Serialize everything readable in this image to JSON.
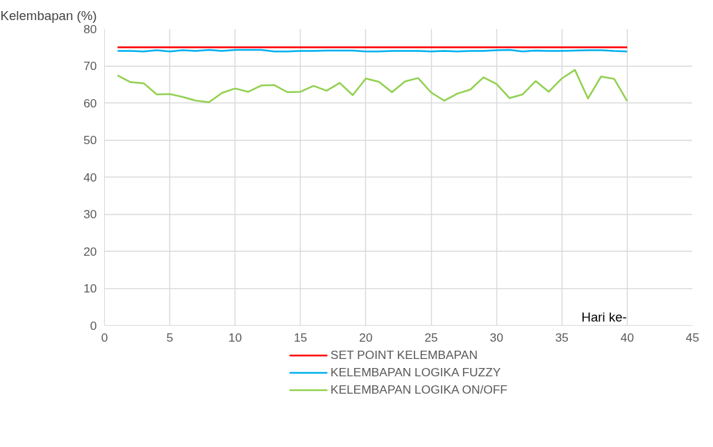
{
  "chart_data": {
    "type": "line",
    "ylabel": "Kelembapan (%)",
    "xlabel": "Hari ke-",
    "x": [
      1,
      2,
      3,
      4,
      5,
      6,
      7,
      8,
      9,
      10,
      11,
      12,
      13,
      14,
      15,
      16,
      17,
      18,
      19,
      20,
      21,
      22,
      23,
      24,
      25,
      26,
      27,
      28,
      29,
      30,
      31,
      32,
      33,
      34,
      35,
      36,
      37,
      38,
      39,
      40
    ],
    "series": [
      {
        "name": "SET POINT KELEMBAPAN",
        "color": "#ff0000",
        "values": [
          75,
          75,
          75,
          75,
          75,
          75,
          75,
          75,
          75,
          75,
          75,
          75,
          75,
          75,
          75,
          75,
          75,
          75,
          75,
          75,
          75,
          75,
          75,
          75,
          75,
          75,
          75,
          75,
          75,
          75,
          75,
          75,
          75,
          75,
          75,
          75,
          75,
          75,
          75,
          75
        ]
      },
      {
        "name": "KELEMBAPAN LOGIKA FUZZY",
        "color": "#00b0f0",
        "values": [
          74,
          74,
          73.9,
          74.2,
          73.9,
          74.2,
          74,
          74.3,
          74,
          74.3,
          74.3,
          74.3,
          73.9,
          73.9,
          74,
          74,
          74.1,
          74.1,
          74.1,
          73.9,
          73.9,
          74,
          74,
          74,
          73.9,
          74,
          73.9,
          74,
          74,
          74.2,
          74.3,
          73.9,
          74.1,
          74,
          74,
          74.1,
          74.2,
          74.2,
          74,
          73.9
        ]
      },
      {
        "name": "KELEMBAPAN LOGIKA ON/OFF",
        "color": "#92d050",
        "values": [
          67.4,
          65.6,
          65.3,
          62.3,
          62.4,
          61.6,
          60.6,
          60.2,
          62.7,
          63.9,
          63.0,
          64.7,
          64.8,
          62.9,
          63.0,
          64.6,
          63.3,
          65.4,
          62.1,
          66.6,
          65.7,
          62.9,
          65.8,
          66.7,
          62.8,
          60.6,
          62.5,
          63.6,
          66.9,
          65.1,
          61.3,
          62.3,
          65.9,
          63.0,
          66.6,
          68.9,
          61.2,
          67.1,
          66.5,
          60.5
        ]
      }
    ],
    "xlim": [
      0,
      45
    ],
    "xticks": [
      0,
      5,
      10,
      15,
      20,
      25,
      30,
      35,
      40,
      45
    ],
    "ylim": [
      0,
      80
    ],
    "yticks": [
      0,
      10,
      20,
      30,
      40,
      50,
      60,
      70,
      80
    ],
    "grid": true,
    "legend": "bottom",
    "marker": "none",
    "line_style": "solid"
  }
}
